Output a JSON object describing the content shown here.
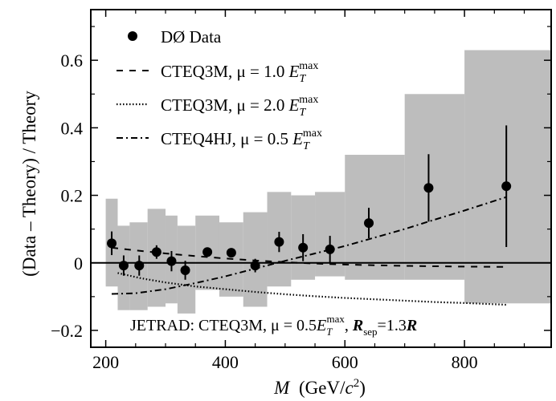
{
  "chart_data": {
    "type": "scatter",
    "xlabel": {
      "main": "M",
      "unit_open": "(GeV/",
      "unit_var": "c",
      "unit_sup": "2",
      "unit_close": ")"
    },
    "ylabel": "(Data – Theory) / Theory",
    "xlim": [
      175,
      945
    ],
    "ylim": [
      -0.25,
      0.75
    ],
    "x_ticks": [
      200,
      400,
      600,
      800
    ],
    "x_tick_labels": [
      "200",
      "400",
      "600",
      "800"
    ],
    "y_ticks": [
      -0.2,
      0,
      0.2,
      0.4,
      0.6
    ],
    "y_tick_labels": [
      "−0.2",
      "0",
      "0.2",
      "0.4",
      "0.6"
    ],
    "systematic_band": [
      {
        "x0": 200,
        "x1": 220,
        "lo": -0.07,
        "hi": 0.19
      },
      {
        "x0": 220,
        "x1": 240,
        "lo": -0.14,
        "hi": 0.11
      },
      {
        "x0": 240,
        "x1": 270,
        "lo": -0.14,
        "hi": 0.12
      },
      {
        "x0": 270,
        "x1": 300,
        "lo": -0.13,
        "hi": 0.16
      },
      {
        "x0": 300,
        "x1": 320,
        "lo": -0.12,
        "hi": 0.14
      },
      {
        "x0": 320,
        "x1": 350,
        "lo": -0.15,
        "hi": 0.11
      },
      {
        "x0": 350,
        "x1": 390,
        "lo": -0.08,
        "hi": 0.14
      },
      {
        "x0": 390,
        "x1": 430,
        "lo": -0.1,
        "hi": 0.12
      },
      {
        "x0": 430,
        "x1": 470,
        "lo": -0.13,
        "hi": 0.15
      },
      {
        "x0": 470,
        "x1": 510,
        "lo": -0.07,
        "hi": 0.21
      },
      {
        "x0": 510,
        "x1": 550,
        "lo": -0.05,
        "hi": 0.2
      },
      {
        "x0": 550,
        "x1": 600,
        "lo": -0.04,
        "hi": 0.21
      },
      {
        "x0": 600,
        "x1": 700,
        "lo": -0.05,
        "hi": 0.32
      },
      {
        "x0": 700,
        "x1": 800,
        "lo": -0.05,
        "hi": 0.5
      },
      {
        "x0": 800,
        "x1": 945,
        "lo": -0.12,
        "hi": 0.63
      }
    ],
    "data_points": [
      {
        "x": 210,
        "y": 0.058,
        "err": 0.035
      },
      {
        "x": 230,
        "y": -0.008,
        "err": 0.03
      },
      {
        "x": 256,
        "y": -0.008,
        "err": 0.03
      },
      {
        "x": 285,
        "y": 0.032,
        "err": 0.02
      },
      {
        "x": 310,
        "y": 0.005,
        "err": 0.03
      },
      {
        "x": 333,
        "y": -0.022,
        "err": 0.028
      },
      {
        "x": 370,
        "y": 0.032,
        "err": 0.012
      },
      {
        "x": 410,
        "y": 0.03,
        "err": 0.012
      },
      {
        "x": 450,
        "y": -0.008,
        "err": 0.02
      },
      {
        "x": 490,
        "y": 0.062,
        "err": 0.03
      },
      {
        "x": 530,
        "y": 0.045,
        "err": 0.04
      },
      {
        "x": 575,
        "y": 0.04,
        "err": 0.04
      },
      {
        "x": 640,
        "y": 0.118,
        "err": 0.045
      },
      {
        "x": 740,
        "y": 0.222,
        "err": 0.1
      },
      {
        "x": 870,
        "y": 0.227,
        "err": 0.18
      }
    ],
    "series": [
      {
        "name": "CTEQ3M, μ = 1.0 E_T^max",
        "style": "dashed",
        "x": [
          210,
          250,
          300,
          350,
          400,
          450,
          500,
          550,
          600,
          650,
          700,
          750,
          800,
          870
        ],
        "y": [
          0.045,
          0.037,
          0.028,
          0.02,
          0.013,
          0.007,
          0.002,
          -0.002,
          -0.005,
          -0.007,
          -0.009,
          -0.01,
          -0.011,
          -0.012
        ]
      },
      {
        "name": "CTEQ3M, μ = 2.0 E_T^max",
        "style": "dotted",
        "x": [
          220,
          260,
          300,
          350,
          400,
          450,
          500,
          550,
          600,
          650,
          700,
          750,
          800,
          870
        ],
        "y": [
          -0.03,
          -0.046,
          -0.058,
          -0.07,
          -0.078,
          -0.086,
          -0.093,
          -0.099,
          -0.104,
          -0.108,
          -0.112,
          -0.116,
          -0.119,
          -0.124
        ]
      },
      {
        "name": "CTEQ4HJ, μ = 0.5 E_T^max",
        "style": "dash-dot",
        "x": [
          210,
          250,
          300,
          350,
          400,
          450,
          500,
          550,
          600,
          650,
          700,
          750,
          800,
          870
        ],
        "y": [
          -0.092,
          -0.09,
          -0.078,
          -0.06,
          -0.04,
          -0.017,
          0.006,
          0.028,
          0.05,
          0.075,
          0.1,
          0.128,
          0.155,
          0.195
        ]
      }
    ],
    "legend": {
      "placement": "top-left",
      "entries": [
        {
          "marker": "dot",
          "label": "DØ Data"
        },
        {
          "marker": "dashed",
          "label_main": "CTEQ3M,  μ = 1.0 ",
          "label_var": "E",
          "label_sub": "T",
          "label_sup": "max"
        },
        {
          "marker": "dotted",
          "label_main": "CTEQ3M,  μ = 2.0 ",
          "label_var": "E",
          "label_sub": "T",
          "label_sup": "max"
        },
        {
          "marker": "dash-dot",
          "label_main": "CTEQ4HJ,  μ = 0.5 ",
          "label_var": "E",
          "label_sub": "T",
          "label_sup": "max"
        }
      ]
    },
    "annotation": {
      "part1": "JETRAD: CTEQ3M,  μ = 0.5",
      "var": "E",
      "sub": "T",
      "sup": "max",
      "part2": ",  ",
      "rsep": "R",
      "rsep_sub": "sep",
      "part3": "=1.3",
      "r": "R"
    }
  }
}
